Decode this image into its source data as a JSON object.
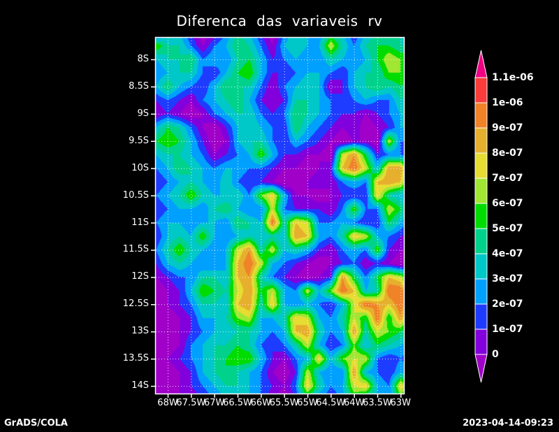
{
  "title": "Diferenca das variaveis rv",
  "footer": {
    "left": "GrADS/COLA",
    "right": "2023-04-14-09:23"
  },
  "colors": {
    "background": "#000000",
    "text": "#ffffff",
    "frame": "#ffffff",
    "grid_dots": "#ffffff"
  },
  "chart_data": {
    "type": "heatmap",
    "title": "Diferenca das variaveis rv",
    "grid_on": true,
    "legend_position": "right",
    "x_axis": {
      "ticks": [
        "68W",
        "67.5W",
        "67W",
        "66.5W",
        "66W",
        "65.5W",
        "65W",
        "64.5W",
        "64W",
        "63.5W",
        "63W"
      ],
      "values_deg_w": [
        68,
        67.5,
        67,
        66.5,
        66,
        65.5,
        65,
        64.5,
        64,
        63.5,
        63
      ],
      "range_deg_w": [
        68.27,
        62.93
      ]
    },
    "y_axis": {
      "ticks": [
        "8S",
        "8.5S",
        "9S",
        "9.5S",
        "10S",
        "10.5S",
        "11S",
        "11.5S",
        "12S",
        "12.5S",
        "13S",
        "13.5S",
        "14S"
      ],
      "values_deg_s": [
        8,
        8.5,
        9,
        9.5,
        10,
        10.5,
        11,
        11.5,
        12,
        12.5,
        13,
        13.5,
        14
      ],
      "range_deg_s": [
        7.59,
        14.14
      ]
    },
    "colorbar": {
      "labels": [
        "1.1e-06",
        "1e-06",
        "9e-07",
        "8e-07",
        "7e-07",
        "6e-07",
        "5e-07",
        "4e-07",
        "3e-07",
        "2e-07",
        "1e-07",
        "0"
      ],
      "colors_top_to_bottom": [
        "#F00082",
        "#FA3C3C",
        "#F08228",
        "#E6AF2D",
        "#E6DC32",
        "#A0E632",
        "#00DC00",
        "#00D28C",
        "#00C8C8",
        "#00A0FF",
        "#1E3CFF",
        "#8200DC",
        "#A000C8"
      ],
      "over_color": "#F00082",
      "under_color": "#A000C8"
    },
    "levels_1e-07": [
      0,
      1,
      2,
      3,
      4,
      5,
      6,
      7,
      8,
      9,
      10,
      11
    ],
    "palette_low_to_high": [
      "#A000C8",
      "#8200DC",
      "#1E3CFF",
      "#00A0FF",
      "#00C8C8",
      "#00D28C",
      "#00DC00",
      "#A0E632",
      "#E6DC32",
      "#E6AF2D",
      "#F08228",
      "#FA3C3C",
      "#F00082"
    ],
    "field": {
      "units": "values in 1e-07; negative = below lowest contour",
      "lon_w_start": 68.25,
      "lon_w_step": 0.25,
      "n_lon": 23,
      "lat_s_start": 7.5,
      "lat_s_step": 0.25,
      "n_lat": 28,
      "values": [
        [
          0,
          3,
          3,
          1,
          -1,
          0,
          2,
          4,
          3,
          1,
          -1,
          2,
          4,
          3,
          2,
          4,
          3,
          1,
          3,
          4,
          4,
          4,
          3
        ],
        [
          6,
          4,
          4,
          2,
          0,
          2,
          3,
          5,
          4,
          2,
          0,
          3,
          4,
          3,
          3,
          7,
          4,
          2,
          4,
          5,
          5,
          4,
          4
        ],
        [
          3,
          4,
          4,
          5,
          2,
          3,
          2,
          4,
          5,
          3,
          1,
          2,
          3,
          2,
          2,
          4,
          3,
          2,
          3,
          5,
          7,
          6,
          5
        ],
        [
          2,
          3,
          4,
          4,
          2,
          1,
          3,
          5,
          6,
          3,
          1,
          1,
          2,
          3,
          3,
          2,
          1,
          3,
          4,
          4,
          6,
          6,
          4
        ],
        [
          3,
          5,
          3,
          2,
          1,
          3,
          5,
          4,
          4,
          2,
          0,
          2,
          3,
          4,
          3,
          0,
          1,
          3,
          4,
          5,
          4,
          5,
          4
        ],
        [
          1,
          2,
          1,
          0,
          2,
          3,
          4,
          5,
          3,
          1,
          0,
          1,
          4,
          4,
          3,
          2,
          1,
          2,
          3,
          2,
          2,
          4,
          3
        ],
        [
          0,
          1,
          0,
          -1,
          0,
          2,
          3,
          4,
          4,
          2,
          1,
          2,
          5,
          4,
          3,
          2,
          1,
          1,
          0,
          1,
          2,
          3,
          3
        ],
        [
          3,
          5,
          4,
          2,
          0,
          -1,
          1,
          3,
          4,
          3,
          2,
          1,
          5,
          3,
          2,
          1,
          0,
          1,
          -1,
          0,
          1,
          3,
          3
        ],
        [
          5,
          6,
          5,
          3,
          1,
          -1,
          0,
          3,
          4,
          4,
          2,
          1,
          3,
          2,
          1,
          0,
          -1,
          0,
          0,
          -1,
          7,
          2,
          2
        ],
        [
          3,
          4,
          4,
          3,
          2,
          0,
          1,
          2,
          3,
          6,
          3,
          1,
          1,
          0,
          0,
          -1,
          7,
          9,
          5,
          1,
          2,
          2,
          1
        ],
        [
          2,
          3,
          5,
          4,
          3,
          2,
          3,
          3,
          2,
          2,
          1,
          0,
          0,
          -1,
          0,
          1,
          8,
          10,
          7,
          3,
          9,
          9,
          3
        ],
        [
          1,
          2,
          3,
          4,
          3,
          2,
          4,
          2,
          1,
          1,
          0,
          -1,
          -1,
          0,
          1,
          0,
          2,
          3,
          2,
          8,
          9,
          8,
          3
        ],
        [
          2,
          3,
          4,
          6,
          4,
          3,
          3,
          4,
          2,
          6,
          8,
          3,
          0,
          0,
          -1,
          0,
          1,
          1,
          1,
          8,
          4,
          3,
          2
        ],
        [
          1,
          2,
          3,
          3,
          2,
          4,
          5,
          3,
          2,
          2,
          7,
          2,
          1,
          1,
          1,
          0,
          2,
          6,
          2,
          2,
          7,
          5,
          2
        ],
        [
          2,
          3,
          3,
          2,
          3,
          3,
          2,
          5,
          4,
          3,
          10,
          4,
          8,
          7,
          2,
          2,
          3,
          2,
          1,
          1,
          5,
          3,
          1
        ],
        [
          1,
          3,
          4,
          3,
          6,
          3,
          2,
          3,
          4,
          3,
          4,
          3,
          9,
          8,
          3,
          2,
          4,
          8,
          7,
          3,
          2,
          1,
          0
        ],
        [
          2,
          4,
          6,
          4,
          3,
          2,
          3,
          7,
          9,
          4,
          7,
          3,
          4,
          3,
          1,
          0,
          2,
          3,
          2,
          6,
          1,
          0,
          0
        ],
        [
          1,
          3,
          4,
          3,
          2,
          2,
          3,
          8,
          10,
          7,
          3,
          2,
          1,
          0,
          -1,
          0,
          1,
          2,
          0,
          1,
          0,
          -1,
          0
        ],
        [
          0,
          1,
          2,
          2,
          4,
          4,
          3,
          8,
          9,
          4,
          2,
          1,
          0,
          -1,
          0,
          1,
          9,
          5,
          2,
          5,
          8,
          7,
          3
        ],
        [
          -1,
          0,
          1,
          3,
          6,
          5,
          4,
          7,
          9,
          5,
          7,
          3,
          2,
          7,
          3,
          6,
          10,
          8,
          3,
          4,
          10,
          10,
          5
        ],
        [
          -1,
          0,
          1,
          2,
          4,
          4,
          3,
          8,
          9,
          4,
          8,
          3,
          2,
          3,
          2,
          1,
          3,
          7,
          10,
          9,
          8,
          10,
          6
        ],
        [
          -1,
          -1,
          0,
          1,
          3,
          3,
          4,
          6,
          7,
          3,
          3,
          4,
          8,
          7,
          3,
          2,
          4,
          7,
          5,
          10,
          5,
          9,
          4
        ],
        [
          -1,
          0,
          0,
          1,
          2,
          3,
          3,
          4,
          4,
          3,
          2,
          3,
          8,
          9,
          4,
          2,
          3,
          9,
          4,
          7,
          6,
          5,
          3
        ],
        [
          -1,
          -1,
          0,
          2,
          3,
          4,
          4,
          5,
          4,
          2,
          1,
          2,
          4,
          7,
          3,
          1,
          2,
          6,
          3,
          5,
          4,
          3,
          2
        ],
        [
          -1,
          0,
          1,
          2,
          3,
          4,
          5,
          6,
          6,
          3,
          1,
          0,
          2,
          3,
          8,
          3,
          6,
          7,
          7,
          2,
          1,
          2,
          1
        ],
        [
          -1,
          -1,
          0,
          1,
          3,
          4,
          5,
          4,
          3,
          2,
          0,
          -1,
          1,
          7,
          3,
          2,
          2,
          9,
          3,
          2,
          1,
          3,
          2
        ],
        [
          -1,
          0,
          0,
          1,
          2,
          3,
          4,
          4,
          3,
          2,
          1,
          0,
          2,
          8,
          4,
          2,
          3,
          7,
          8,
          3,
          2,
          8,
          4
        ],
        [
          -1,
          -1,
          0,
          0,
          1,
          2,
          3,
          3,
          3,
          2,
          0,
          -1,
          1,
          4,
          2,
          1,
          2,
          5,
          3,
          3,
          2,
          5,
          3
        ]
      ]
    }
  }
}
